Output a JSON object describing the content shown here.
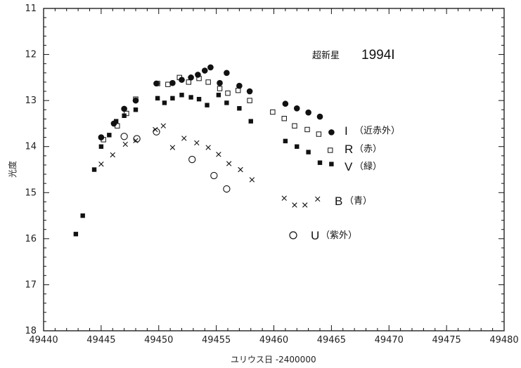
{
  "chart_data": {
    "type": "scatter",
    "title": "超新星",
    "subtitle": "1994I",
    "xlabel": "ユリウス日 -2400000",
    "ylabel": "光度",
    "xlim": [
      49440,
      49480
    ],
    "ylim": [
      11,
      18
    ],
    "y_inverted": true,
    "grid": false,
    "x_ticks": [
      49440,
      49445,
      49450,
      49455,
      49460,
      49465,
      49470,
      49475,
      49480
    ],
    "y_ticks": [
      11,
      12,
      13,
      14,
      15,
      16,
      17,
      18
    ],
    "series": [
      {
        "name": "I",
        "label": "I（近赤外）",
        "marker": "filled-circle",
        "points": [
          [
            49445.0,
            13.8
          ],
          [
            49446.1,
            13.5
          ],
          [
            49447.0,
            13.18
          ],
          [
            49448.0,
            13.0
          ],
          [
            49449.8,
            12.63
          ],
          [
            49451.2,
            12.62
          ],
          [
            49452.0,
            12.55
          ],
          [
            49452.8,
            12.5
          ],
          [
            49453.4,
            12.44
          ],
          [
            49454.0,
            12.35
          ],
          [
            49454.5,
            12.28
          ],
          [
            49455.3,
            12.62
          ],
          [
            49455.9,
            12.4
          ],
          [
            49457.0,
            12.68
          ],
          [
            49457.9,
            12.8
          ],
          [
            49461.0,
            13.07
          ],
          [
            49462.0,
            13.17
          ],
          [
            49463.0,
            13.26
          ],
          [
            49464.0,
            13.35
          ],
          [
            49465.0,
            13.69
          ]
        ]
      },
      {
        "name": "R",
        "label": "R（赤）",
        "marker": "open-square",
        "points": [
          [
            49445.2,
            13.85
          ],
          [
            49446.4,
            13.55
          ],
          [
            49447.2,
            13.28
          ],
          [
            49448.0,
            12.97
          ],
          [
            49449.9,
            12.63
          ],
          [
            49450.8,
            12.65
          ],
          [
            49451.8,
            12.5
          ],
          [
            49452.6,
            12.6
          ],
          [
            49453.5,
            12.52
          ],
          [
            49454.3,
            12.6
          ],
          [
            49455.3,
            12.74
          ],
          [
            49456.0,
            12.84
          ],
          [
            49456.9,
            12.78
          ],
          [
            49457.9,
            13.0
          ],
          [
            49459.9,
            13.25
          ],
          [
            49460.9,
            13.39
          ],
          [
            49461.8,
            13.55
          ],
          [
            49462.9,
            13.63
          ],
          [
            49463.9,
            13.73
          ],
          [
            49464.9,
            14.08
          ]
        ]
      },
      {
        "name": "V",
        "label": "V（緑）",
        "marker": "filled-square",
        "points": [
          [
            49442.8,
            15.9
          ],
          [
            49443.4,
            15.5
          ],
          [
            49444.4,
            14.5
          ],
          [
            49445.0,
            14.0
          ],
          [
            49445.7,
            13.75
          ],
          [
            49446.3,
            13.45
          ],
          [
            49447.0,
            13.33
          ],
          [
            49448.0,
            13.2
          ],
          [
            49449.9,
            12.95
          ],
          [
            49450.5,
            13.05
          ],
          [
            49451.2,
            12.95
          ],
          [
            49452.0,
            12.88
          ],
          [
            49452.8,
            12.93
          ],
          [
            49453.5,
            12.97
          ],
          [
            49454.2,
            13.1
          ],
          [
            49455.2,
            12.88
          ],
          [
            49455.9,
            13.05
          ],
          [
            49457.0,
            13.17
          ],
          [
            49458.0,
            13.45
          ],
          [
            49461.0,
            13.88
          ],
          [
            49462.0,
            14.0
          ],
          [
            49463.0,
            14.12
          ],
          [
            49464.0,
            14.35
          ],
          [
            49465.0,
            14.38
          ]
        ]
      },
      {
        "name": "B",
        "label": "B（青）",
        "marker": "cross",
        "points": [
          [
            49445.0,
            14.38
          ],
          [
            49446.0,
            14.18
          ],
          [
            49447.1,
            13.95
          ],
          [
            49448.0,
            13.87
          ],
          [
            49449.7,
            13.63
          ],
          [
            49450.4,
            13.55
          ],
          [
            49451.2,
            14.02
          ],
          [
            49452.2,
            13.82
          ],
          [
            49453.3,
            13.92
          ],
          [
            49454.3,
            14.02
          ],
          [
            49455.2,
            14.17
          ],
          [
            49456.1,
            14.37
          ],
          [
            49457.1,
            14.5
          ],
          [
            49458.1,
            14.72
          ],
          [
            49460.9,
            15.12
          ],
          [
            49461.8,
            15.27
          ],
          [
            49462.7,
            15.27
          ],
          [
            49463.8,
            15.14
          ]
        ]
      },
      {
        "name": "U",
        "label": "U（紫外）",
        "marker": "open-circle",
        "points": [
          [
            49447.0,
            13.78
          ],
          [
            49448.1,
            13.83
          ],
          [
            49449.8,
            13.68
          ],
          [
            49452.9,
            14.28
          ],
          [
            49454.8,
            14.63
          ],
          [
            49455.9,
            14.92
          ]
        ]
      }
    ]
  }
}
